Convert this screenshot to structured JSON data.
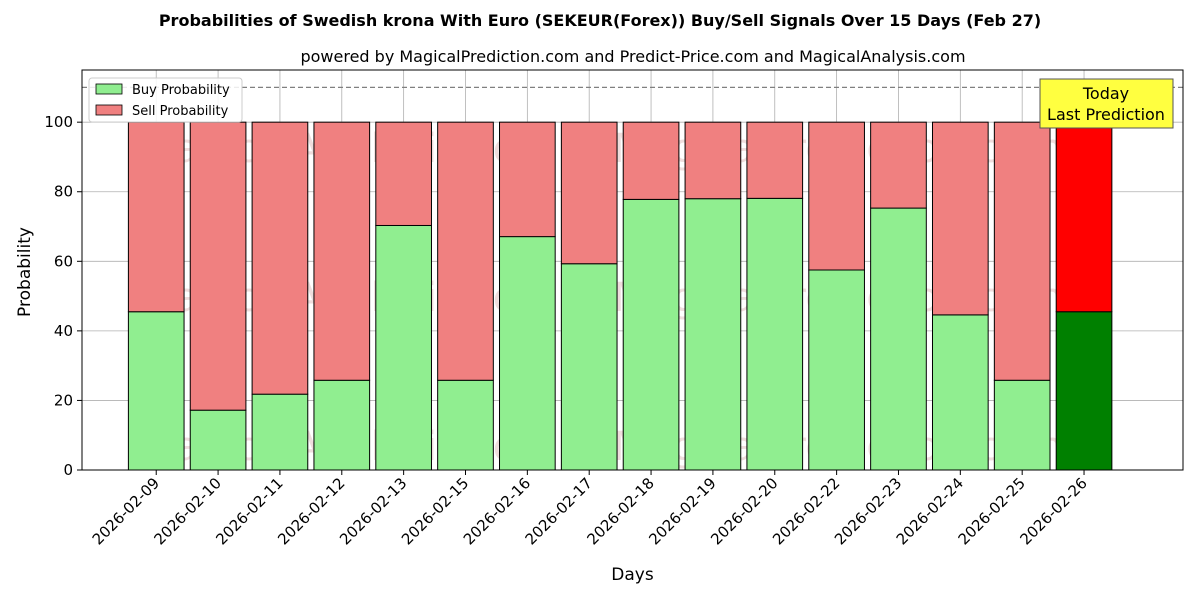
{
  "chart_data": {
    "type": "bar",
    "stacked": true,
    "title": "Probabilities of Swedish krona With Euro (SEKEUR(Forex)) Buy/Sell Signals Over 15 Days (Feb 27)",
    "subtitle": "powered by MagicalPrediction.com and Predict-Price.com and MagicalAnalysis.com",
    "xlabel": "Days",
    "ylabel": "Probability",
    "ylim": [
      0,
      115
    ],
    "yticks": [
      0,
      20,
      40,
      60,
      80,
      100
    ],
    "reference_line": 110,
    "grid": true,
    "legend_position": "top-left",
    "categories": [
      "2026-02-09",
      "2026-02-10",
      "2026-02-11",
      "2026-02-12",
      "2026-02-13",
      "2026-02-15",
      "2026-02-16",
      "2026-02-17",
      "2026-02-18",
      "2026-02-19",
      "2026-02-20",
      "2026-02-22",
      "2026-02-23",
      "2026-02-24",
      "2026-02-25",
      "2026-02-26"
    ],
    "series": [
      {
        "name": "Buy Probability",
        "color": "#90ee90",
        "highlight_color": "#008000",
        "values": [
          45.5,
          17.2,
          21.8,
          25.8,
          70.3,
          25.8,
          67.1,
          59.3,
          77.8,
          78.0,
          78.1,
          57.5,
          75.3,
          44.6,
          25.8,
          45.5
        ]
      },
      {
        "name": "Sell Probability",
        "color": "#f08080",
        "highlight_color": "#ff0000",
        "values": [
          54.5,
          82.8,
          78.2,
          74.2,
          29.7,
          74.2,
          32.9,
          40.7,
          22.2,
          22.0,
          21.9,
          42.5,
          24.7,
          55.4,
          74.2,
          54.5
        ]
      }
    ],
    "highlight_index": 15,
    "annotation": {
      "line1": "Today",
      "line2": "Last Prediction",
      "background": "#ffff40"
    },
    "watermarks": [
      "MagicalAnalysis.com",
      "MagicalPrediction.com"
    ]
  }
}
